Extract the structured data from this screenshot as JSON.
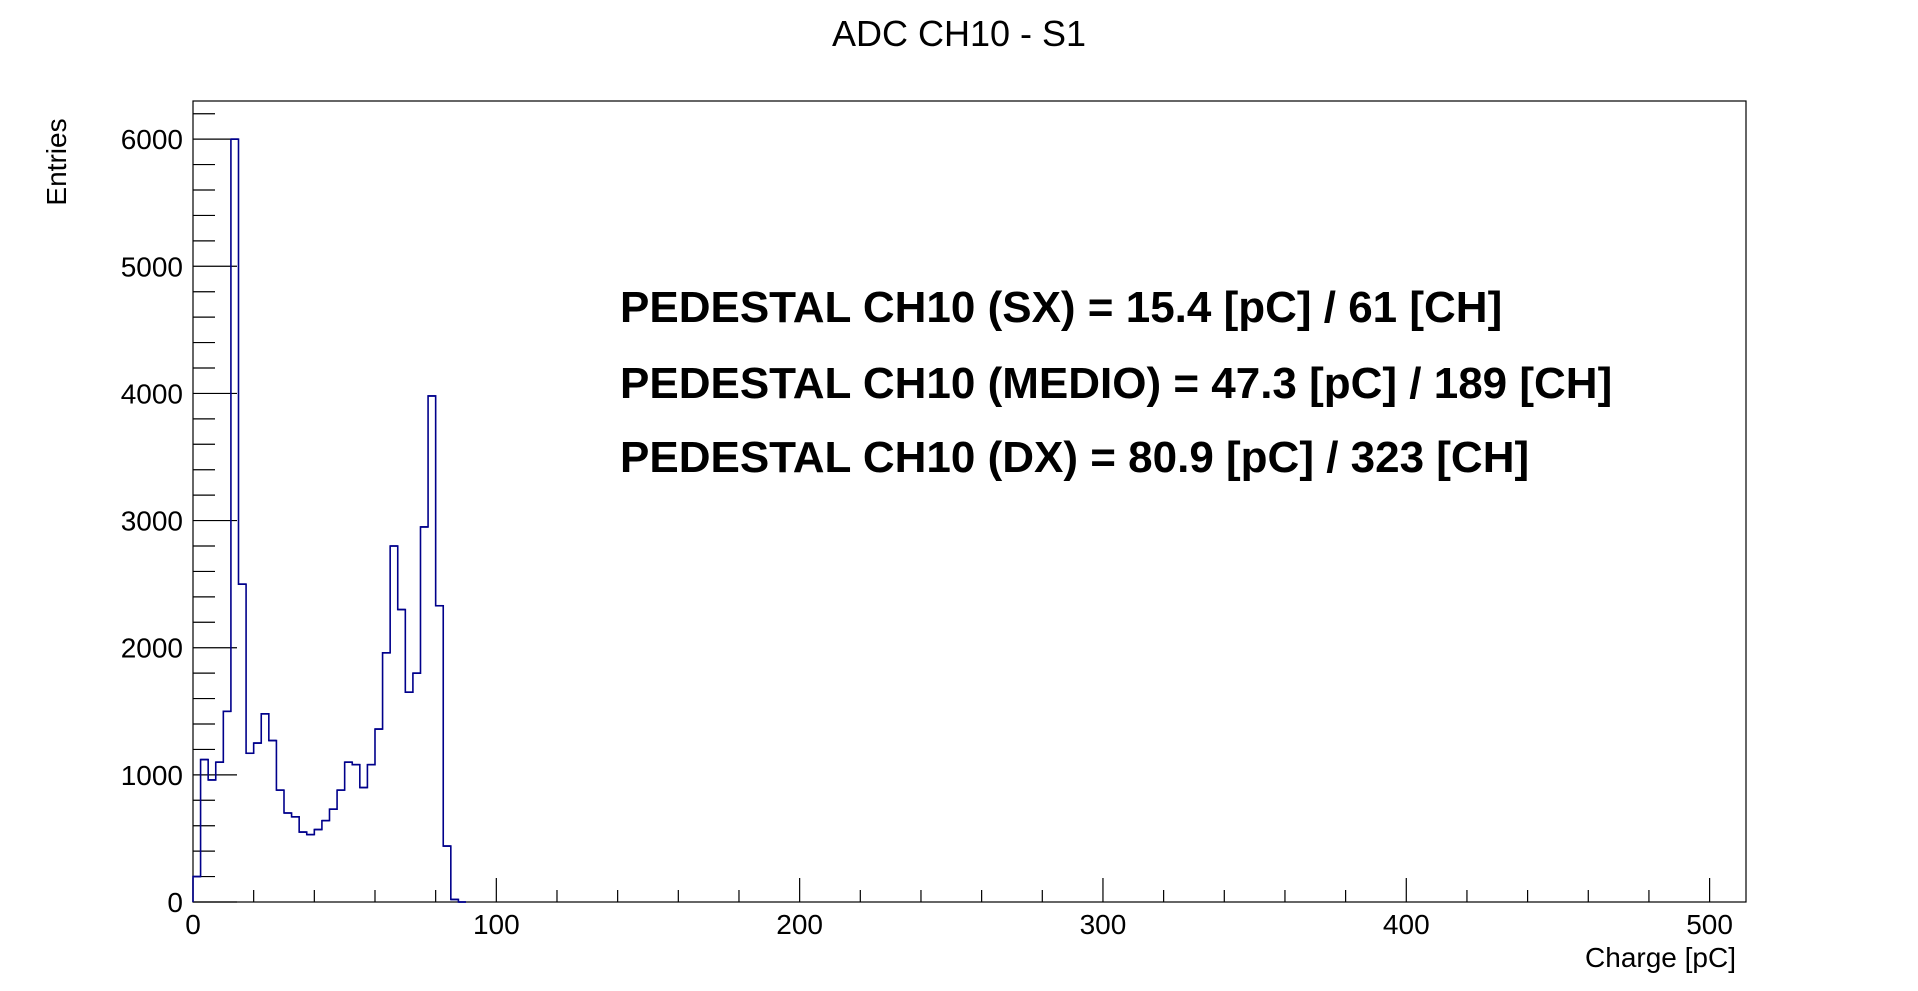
{
  "chart_data": {
    "type": "histogram",
    "title": "ADC CH10 - S1",
    "xlabel": "Charge [pC]",
    "ylabel": "Entries",
    "xlim": [
      0,
      512
    ],
    "ylim": [
      0,
      6300
    ],
    "x_ticks": [
      0,
      100,
      200,
      300,
      400,
      500
    ],
    "y_ticks": [
      0,
      1000,
      2000,
      3000,
      4000,
      5000,
      6000
    ],
    "bin_width": 2.5,
    "series": [
      {
        "color": "#00008B",
        "bin_start": [
          0,
          2.5,
          5,
          7.5,
          10,
          12.5,
          15,
          17.5,
          20,
          22.5,
          25,
          27.5,
          30,
          32.5,
          35,
          37.5,
          40,
          42.5,
          45,
          47.5,
          50,
          52.5,
          55,
          57.5,
          60,
          62.5,
          65,
          67.5,
          70,
          72.5,
          75,
          77.5,
          80,
          82.5,
          85,
          87.5
        ],
        "counts": [
          200,
          1120,
          960,
          1100,
          1500,
          6000,
          2500,
          1170,
          1250,
          1480,
          1270,
          880,
          700,
          670,
          550,
          530,
          570,
          640,
          730,
          880,
          1100,
          1080,
          900,
          1080,
          1360,
          1960,
          2800,
          2300,
          1650,
          1800,
          2950,
          3980,
          2330,
          440,
          20,
          0
        ]
      }
    ],
    "annotations": [
      "PEDESTAL CH10 (SX) = 15.4 [pC] / 61 [CH]",
      "PEDESTAL CH10 (MEDIO) = 47.3 [pC] / 189 [CH]",
      "PEDESTAL CH10 (DX) = 80.9 [pC] / 323 [CH]"
    ]
  }
}
